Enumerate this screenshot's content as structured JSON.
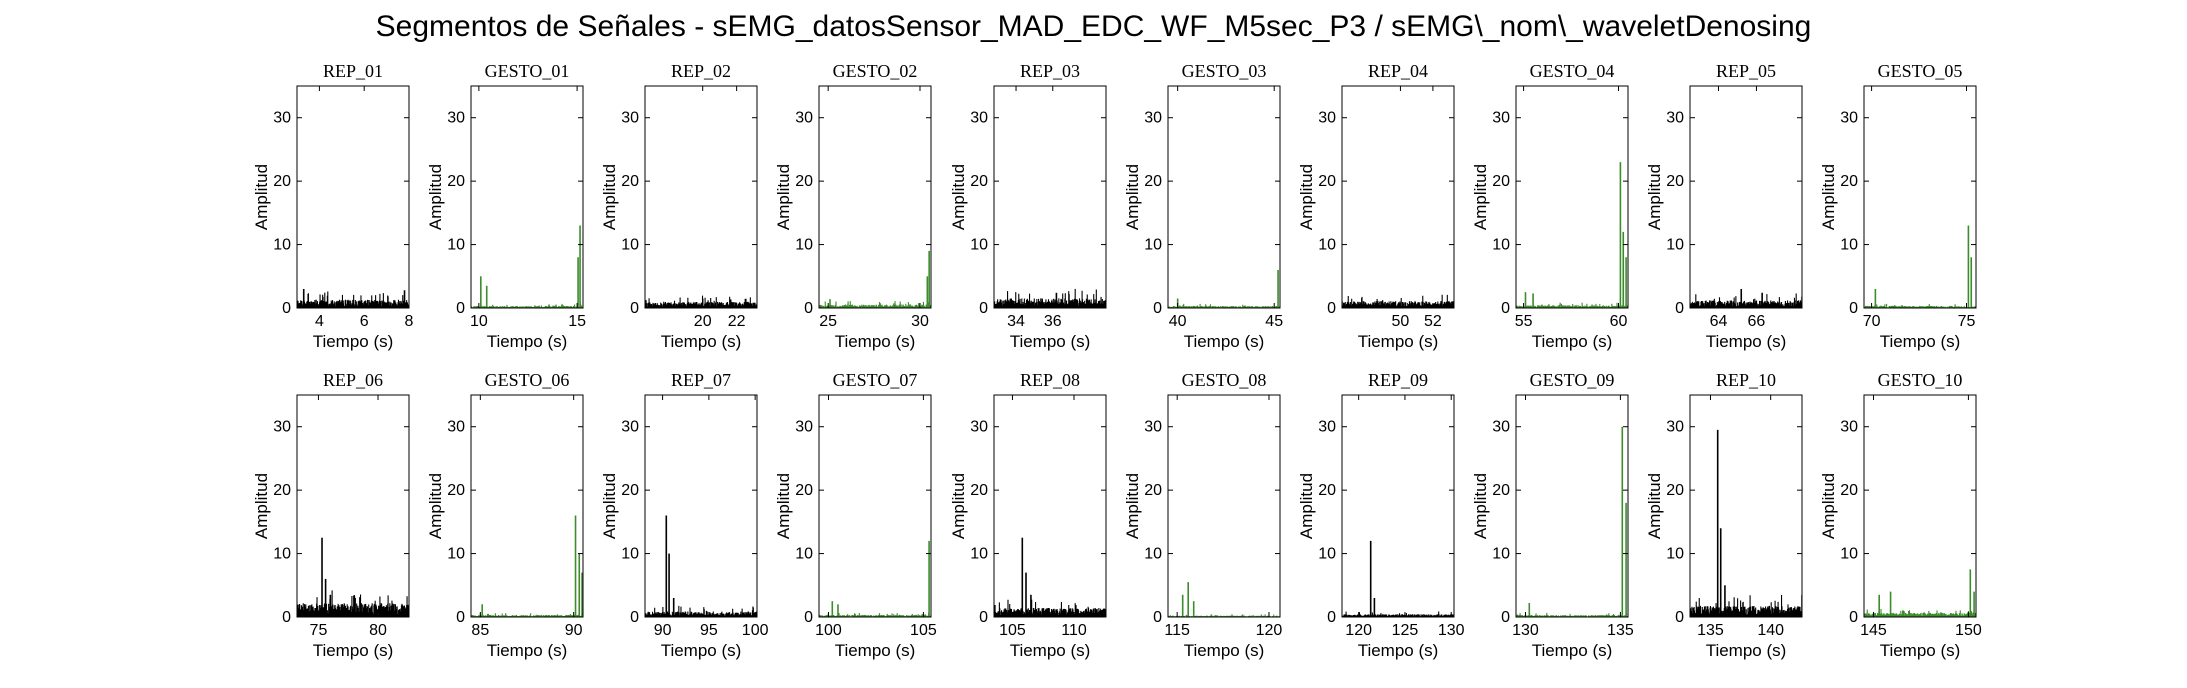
{
  "figure": {
    "title": "Segmentos de Señales - sEMG_datosSensor_MAD_EDC_WF_M5sec_P3 / sEMG\\_nom\\_waveletDenosing"
  },
  "colors": {
    "rep": "#000000",
    "gesto": "#3c8c2c",
    "axes": "#000000",
    "background": "#ffffff"
  },
  "chart_data": {
    "type": "line",
    "layout": "grid 2x10",
    "grid": false,
    "shared_ylim": [
      0,
      35
    ],
    "shared_yticks": [
      0,
      10,
      20,
      30
    ],
    "panels": [
      {
        "title": "REP_01",
        "kind": "rep",
        "xlim": [
          3,
          8
        ],
        "xticks": [
          4,
          6,
          8
        ],
        "xlabel": "Tiempo (s)",
        "ylabel": "Amplitud",
        "peaks": [
          {
            "x": 3.3,
            "y": 3
          },
          {
            "x": 7.8,
            "y": 2.8
          }
        ],
        "baseline": 1.2
      },
      {
        "title": "GESTO_01",
        "kind": "gesto",
        "xlim": [
          9.6,
          15.3
        ],
        "xticks": [
          10,
          15
        ],
        "xlabel": "Tiempo (s)",
        "ylabel": "Amplitud",
        "peaks": [
          {
            "x": 10.1,
            "y": 5
          },
          {
            "x": 10.4,
            "y": 3.5
          },
          {
            "x": 15.05,
            "y": 8
          },
          {
            "x": 15.15,
            "y": 13
          }
        ],
        "baseline": 0.3
      },
      {
        "title": "REP_02",
        "kind": "rep",
        "xlim": [
          16.6,
          23.2
        ],
        "xticks": [
          20,
          22
        ],
        "xlabel": "Tiempo (s)",
        "ylabel": "Amplitud",
        "peaks": [],
        "baseline": 0.9
      },
      {
        "title": "GESTO_02",
        "kind": "gesto",
        "xlim": [
          24.5,
          30.6
        ],
        "xticks": [
          25,
          30
        ],
        "xlabel": "Tiempo (s)",
        "ylabel": "Amplitud",
        "peaks": [
          {
            "x": 25.1,
            "y": 1.4
          },
          {
            "x": 30.4,
            "y": 5
          },
          {
            "x": 30.5,
            "y": 9
          }
        ],
        "baseline": 0.5
      },
      {
        "title": "REP_03",
        "kind": "rep",
        "xlim": [
          32.8,
          38.9
        ],
        "xticks": [
          34,
          36
        ],
        "xlabel": "Tiempo (s)",
        "ylabel": "Amplitud",
        "peaks": [
          {
            "x": 36.2,
            "y": 2.4
          }
        ],
        "baseline": 1.4
      },
      {
        "title": "GESTO_03",
        "kind": "gesto",
        "xlim": [
          39.5,
          45.3
        ],
        "xticks": [
          40,
          45
        ],
        "xlabel": "Tiempo (s)",
        "ylabel": "Amplitud",
        "peaks": [
          {
            "x": 40.0,
            "y": 1.5
          },
          {
            "x": 45.2,
            "y": 6
          }
        ],
        "baseline": 0.3
      },
      {
        "title": "REP_04",
        "kind": "rep",
        "xlim": [
          46.4,
          53.3
        ],
        "xticks": [
          50,
          52
        ],
        "xlabel": "Tiempo (s)",
        "ylabel": "Amplitud",
        "peaks": [],
        "baseline": 1.0
      },
      {
        "title": "GESTO_04",
        "kind": "gesto",
        "xlim": [
          54.6,
          60.5
        ],
        "xticks": [
          55,
          60
        ],
        "xlabel": "Tiempo (s)",
        "ylabel": "Amplitud",
        "peaks": [
          {
            "x": 55.1,
            "y": 2.5
          },
          {
            "x": 55.5,
            "y": 2.3
          },
          {
            "x": 60.1,
            "y": 23
          },
          {
            "x": 60.25,
            "y": 12
          },
          {
            "x": 60.4,
            "y": 8
          }
        ],
        "baseline": 0.4
      },
      {
        "title": "REP_05",
        "kind": "rep",
        "xlim": [
          62.5,
          68.4
        ],
        "xticks": [
          64,
          66
        ],
        "xlabel": "Tiempo (s)",
        "ylabel": "Amplitud",
        "peaks": [
          {
            "x": 65.2,
            "y": 3
          },
          {
            "x": 66.3,
            "y": 2.4
          }
        ],
        "baseline": 1.1
      },
      {
        "title": "GESTO_05",
        "kind": "gesto",
        "xlim": [
          69.6,
          75.5
        ],
        "xticks": [
          70,
          75
        ],
        "xlabel": "Tiempo (s)",
        "ylabel": "Amplitud",
        "peaks": [
          {
            "x": 70.2,
            "y": 3
          },
          {
            "x": 75.1,
            "y": 13
          },
          {
            "x": 75.25,
            "y": 8
          }
        ],
        "baseline": 0.3
      },
      {
        "title": "REP_06",
        "kind": "rep",
        "xlim": [
          73.2,
          82.6
        ],
        "xticks": [
          75,
          80
        ],
        "xlabel": "Tiempo (s)",
        "ylabel": "Amplitud",
        "peaks": [
          {
            "x": 75.3,
            "y": 12.5
          },
          {
            "x": 75.6,
            "y": 6
          },
          {
            "x": 76,
            "y": 3.5
          }
        ],
        "baseline": 2.0
      },
      {
        "title": "GESTO_06",
        "kind": "gesto",
        "xlim": [
          84.5,
          90.5
        ],
        "xticks": [
          85,
          90
        ],
        "xlabel": "Tiempo (s)",
        "ylabel": "Amplitud",
        "peaks": [
          {
            "x": 85.1,
            "y": 2
          },
          {
            "x": 90.1,
            "y": 16
          },
          {
            "x": 90.3,
            "y": 10
          },
          {
            "x": 90.45,
            "y": 7
          }
        ],
        "baseline": 0.3
      },
      {
        "title": "REP_07",
        "kind": "rep",
        "xlim": [
          88.1,
          100.2
        ],
        "xticks": [
          90,
          95,
          100
        ],
        "xlabel": "Tiempo (s)",
        "ylabel": "Amplitud",
        "peaks": [
          {
            "x": 90.4,
            "y": 16
          },
          {
            "x": 90.7,
            "y": 10
          },
          {
            "x": 91.2,
            "y": 3
          }
        ],
        "baseline": 0.8
      },
      {
        "title": "GESTO_07",
        "kind": "gesto",
        "xlim": [
          99.5,
          105.4
        ],
        "xticks": [
          100,
          105
        ],
        "xlabel": "Tiempo (s)",
        "ylabel": "Amplitud",
        "peaks": [
          {
            "x": 100.2,
            "y": 2.5
          },
          {
            "x": 100.5,
            "y": 2
          },
          {
            "x": 105.3,
            "y": 12
          }
        ],
        "baseline": 0.3
      },
      {
        "title": "REP_08",
        "kind": "rep",
        "xlim": [
          103.5,
          112.6
        ],
        "xticks": [
          105,
          110
        ],
        "xlabel": "Tiempo (s)",
        "ylabel": "Amplitud",
        "peaks": [
          {
            "x": 105.8,
            "y": 12.5
          },
          {
            "x": 106.1,
            "y": 7
          },
          {
            "x": 106.5,
            "y": 3.5
          }
        ],
        "baseline": 1.3
      },
      {
        "title": "GESTO_08",
        "kind": "gesto",
        "xlim": [
          114.5,
          120.6
        ],
        "xticks": [
          115,
          120
        ],
        "xlabel": "Tiempo (s)",
        "ylabel": "Amplitud",
        "peaks": [
          {
            "x": 115.3,
            "y": 3.5
          },
          {
            "x": 115.6,
            "y": 5.5
          },
          {
            "x": 115.9,
            "y": 2.5
          }
        ],
        "baseline": 0.2
      },
      {
        "title": "REP_09",
        "kind": "rep",
        "xlim": [
          118.2,
          130.3
        ],
        "xticks": [
          120,
          125,
          130
        ],
        "xlabel": "Tiempo (s)",
        "ylabel": "Amplitud",
        "peaks": [
          {
            "x": 121.3,
            "y": 12
          },
          {
            "x": 121.7,
            "y": 3
          }
        ],
        "baseline": 0.4
      },
      {
        "title": "GESTO_09",
        "kind": "gesto",
        "xlim": [
          129.5,
          135.4
        ],
        "xticks": [
          130,
          135
        ],
        "xlabel": "Tiempo (s)",
        "ylabel": "Amplitud",
        "peaks": [
          {
            "x": 130.2,
            "y": 2.2
          },
          {
            "x": 135.1,
            "y": 30
          },
          {
            "x": 135.3,
            "y": 18
          }
        ],
        "baseline": 0.3
      },
      {
        "title": "REP_10",
        "kind": "rep",
        "xlim": [
          133.3,
          142.6
        ],
        "xticks": [
          135,
          140
        ],
        "xlabel": "Tiempo (s)",
        "ylabel": "Amplitud",
        "peaks": [
          {
            "x": 135.6,
            "y": 29.5
          },
          {
            "x": 135.85,
            "y": 14
          },
          {
            "x": 136.2,
            "y": 5
          }
        ],
        "baseline": 1.6
      },
      {
        "title": "GESTO_10",
        "kind": "gesto",
        "xlim": [
          144.5,
          150.4
        ],
        "xticks": [
          145,
          150
        ],
        "xlabel": "Tiempo (s)",
        "ylabel": "Amplitud",
        "peaks": [
          {
            "x": 145.3,
            "y": 3.5
          },
          {
            "x": 145.9,
            "y": 4
          },
          {
            "x": 150.1,
            "y": 7.5
          },
          {
            "x": 150.3,
            "y": 4
          }
        ],
        "baseline": 0.6
      }
    ]
  }
}
